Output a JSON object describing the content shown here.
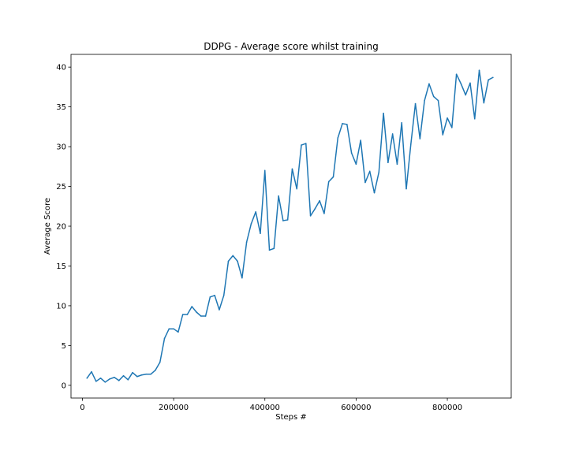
{
  "chart_data": {
    "type": "line",
    "title": "DDPG - Average score whilst training",
    "xlabel": "Steps #",
    "ylabel": "Average Score",
    "xlim": [
      -25000,
      940000
    ],
    "ylim": [
      -1.6,
      41.6
    ],
    "xticks": [
      0,
      200000,
      400000,
      600000,
      800000
    ],
    "yticks": [
      0,
      5,
      10,
      15,
      20,
      25,
      30,
      35,
      40
    ],
    "grid": false,
    "legend": "none",
    "colors": {
      "line": "#1f77b4",
      "axis": "#000000",
      "background": "#ffffff"
    },
    "series": [
      {
        "x": [
          10000,
          20000,
          30000,
          40000,
          50000,
          60000,
          70000,
          80000,
          90000,
          100000,
          110000,
          120000,
          130000,
          140000,
          150000,
          160000,
          170000,
          180000,
          190000,
          200000,
          210000,
          220000,
          230000,
          240000,
          250000,
          260000,
          270000,
          280000,
          290000,
          300000,
          310000,
          320000,
          330000,
          340000,
          350000,
          360000,
          370000,
          380000,
          390000,
          400000,
          410000,
          420000,
          430000,
          440000,
          450000,
          460000,
          470000,
          480000,
          490000,
          500000,
          510000,
          520000,
          530000,
          540000,
          550000,
          560000,
          570000,
          580000,
          590000,
          600000,
          610000,
          620000,
          630000,
          640000,
          650000,
          660000,
          670000,
          680000,
          690000,
          700000,
          710000,
          720000,
          730000,
          740000,
          750000,
          760000,
          770000,
          780000,
          790000,
          800000,
          810000,
          820000,
          830000,
          840000,
          850000,
          860000,
          870000,
          880000,
          890000,
          900000
        ],
        "y": [
          0.9,
          1.7,
          0.5,
          0.9,
          0.4,
          0.8,
          1.0,
          0.6,
          1.2,
          0.7,
          1.6,
          1.1,
          1.3,
          1.4,
          1.4,
          1.9,
          2.9,
          5.9,
          7.1,
          7.1,
          6.7,
          8.9,
          8.9,
          9.9,
          9.2,
          8.7,
          8.7,
          11.1,
          11.3,
          9.5,
          11.3,
          15.6,
          16.3,
          15.6,
          13.5,
          18.0,
          20.3,
          21.8,
          19.1,
          27.0,
          17.0,
          17.2,
          23.8,
          20.7,
          20.8,
          27.2,
          24.7,
          30.2,
          30.4,
          21.3,
          22.2,
          23.2,
          21.6,
          25.6,
          26.2,
          31.1,
          32.9,
          32.8,
          29.2,
          27.8,
          30.8,
          25.5,
          26.9,
          24.2,
          26.8,
          34.2,
          28.0,
          31.6,
          27.8,
          33.0,
          24.7,
          30.3,
          35.4,
          31.0,
          35.8,
          37.9,
          36.3,
          35.8,
          31.5,
          33.6,
          32.4,
          39.1,
          37.9,
          36.5,
          38.0,
          33.5,
          39.6,
          35.5,
          38.4,
          38.7
        ]
      }
    ]
  }
}
